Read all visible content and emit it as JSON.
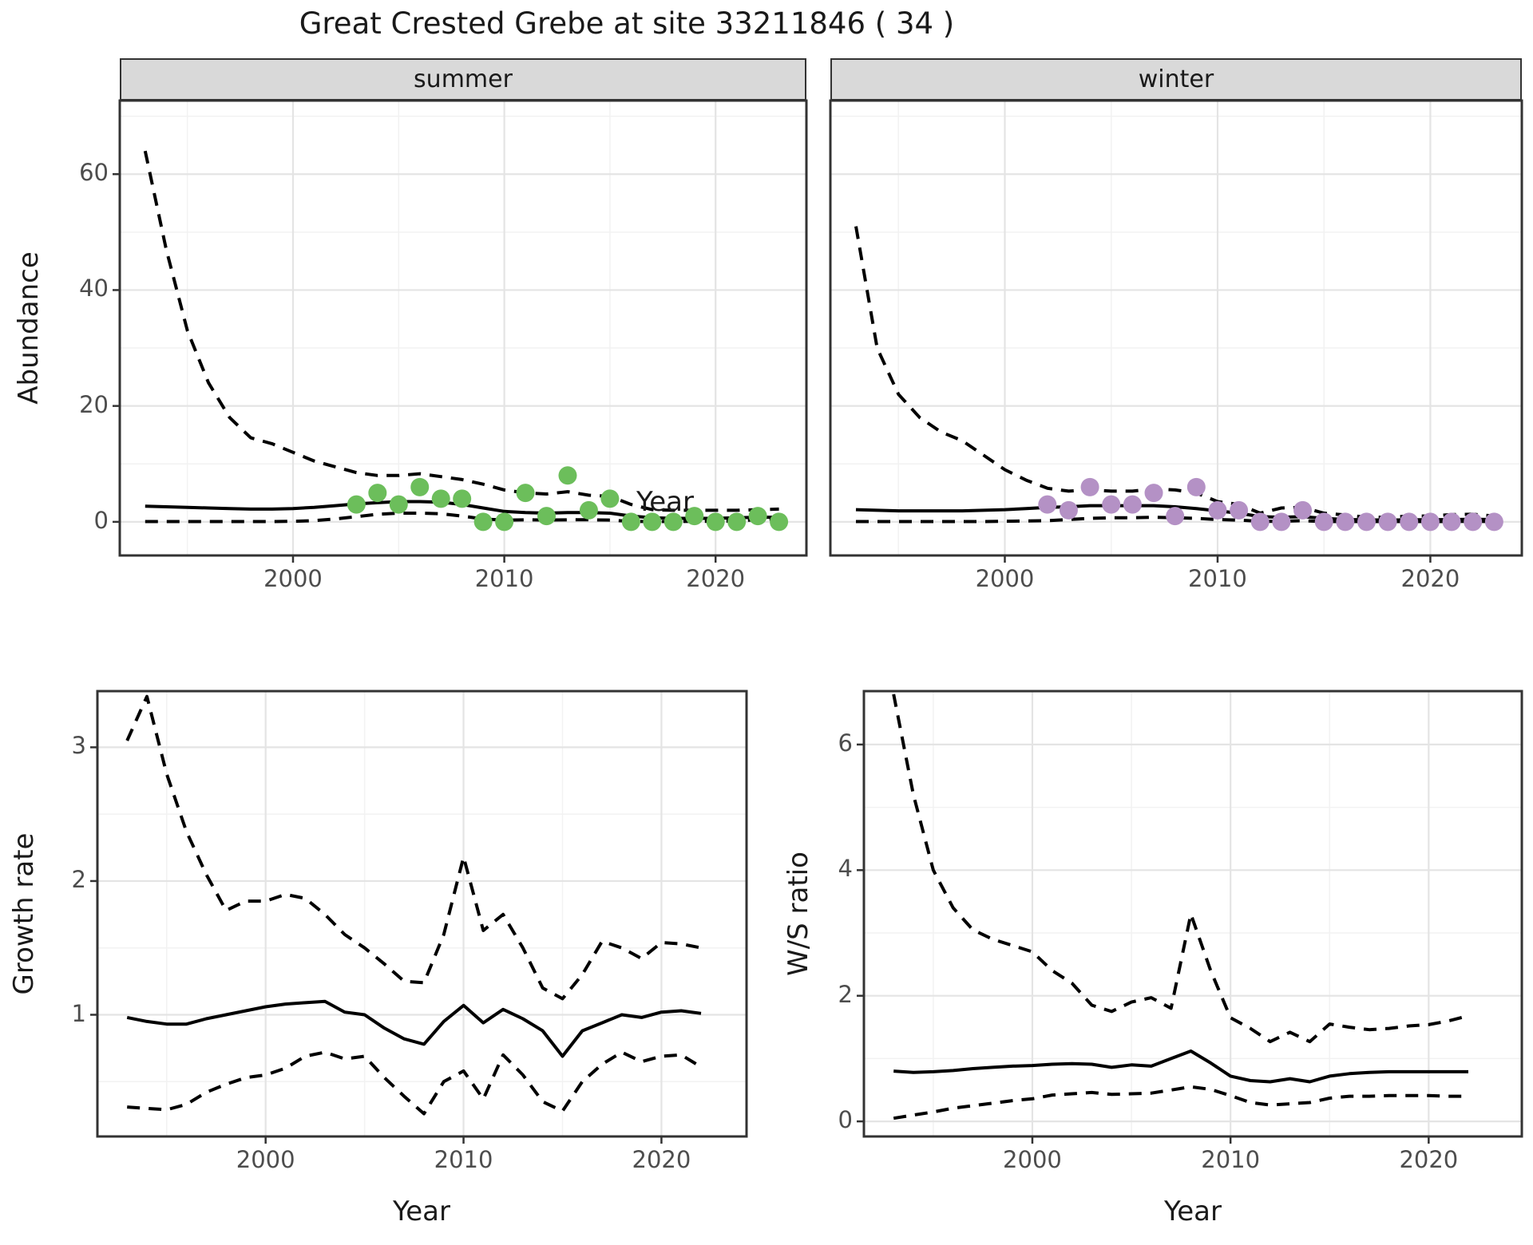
{
  "title": "Great Crested Grebe at site 33211846 ( 34 )",
  "colors": {
    "summer_point": "#6CBE5B",
    "winter_point": "#B491C5",
    "line": "#000000",
    "strip_bg": "#D9D9D9",
    "grid_major": "#E4E4E4",
    "grid_minor": "#F2F2F2",
    "panel_border": "#333333",
    "tick_text": "#4D4D4D",
    "text": "#1A1A1A"
  },
  "chart_data": [
    {
      "id": "abundance-summer",
      "type": "line",
      "facet_label": "summer",
      "xlabel": "Year",
      "ylabel": "Abundance",
      "xlim": [
        1991.8,
        2024.3
      ],
      "ylim": [
        -5.8,
        72.7
      ],
      "x_major_ticks": [
        2000,
        2010,
        2020
      ],
      "x_minor_ticks": [
        1995,
        2005,
        2015
      ],
      "y_major_ticks": [
        0,
        20,
        40,
        60
      ],
      "y_minor_ticks": [
        10,
        30,
        50,
        70
      ],
      "grid": true,
      "legend": "none",
      "series": [
        {
          "name": "upper-ci",
          "style": "dashed",
          "x": [
            1993,
            1994,
            1995,
            1996,
            1997,
            1998,
            1999,
            2000,
            2001,
            2002,
            2003,
            2004,
            2005,
            2006,
            2007,
            2008,
            2009,
            2010,
            2011,
            2012,
            2013,
            2014,
            2015,
            2016,
            2017,
            2018,
            2019,
            2020,
            2021,
            2022,
            2023
          ],
          "y": [
            64,
            47,
            33,
            24,
            18,
            14.5,
            13.5,
            12,
            10.5,
            9.5,
            8.5,
            8,
            8,
            8.3,
            7.8,
            7.3,
            6.5,
            5.5,
            5,
            4.8,
            5.2,
            4.6,
            4.4,
            3,
            2.1,
            2,
            2,
            2,
            2,
            2.1,
            2.2
          ]
        },
        {
          "name": "fit",
          "style": "solid",
          "x": [
            1993,
            1994,
            1995,
            1996,
            1997,
            1998,
            1999,
            2000,
            2001,
            2002,
            2003,
            2004,
            2005,
            2006,
            2007,
            2008,
            2009,
            2010,
            2011,
            2012,
            2013,
            2014,
            2015,
            2016,
            2017,
            2018,
            2019,
            2020,
            2021,
            2022,
            2023
          ],
          "y": [
            2.7,
            2.6,
            2.5,
            2.4,
            2.3,
            2.2,
            2.2,
            2.3,
            2.5,
            2.8,
            3.1,
            3.3,
            3.5,
            3.5,
            3.4,
            3,
            2.4,
            1.8,
            1.6,
            1.5,
            1.6,
            1.6,
            1.5,
            1,
            0.7,
            0.6,
            0.6,
            0.6,
            0.7,
            0.8,
            0.8
          ]
        },
        {
          "name": "lower-ci",
          "style": "dashed",
          "x": [
            1993,
            1994,
            1995,
            1996,
            1997,
            1998,
            1999,
            2000,
            2001,
            2002,
            2003,
            2004,
            2005,
            2006,
            2007,
            2008,
            2009,
            2010,
            2011,
            2012,
            2013,
            2014,
            2015,
            2016,
            2017,
            2018,
            2019,
            2020,
            2021,
            2022,
            2023
          ],
          "y": [
            0.05,
            0.05,
            0.05,
            0.05,
            0.05,
            0.05,
            0.05,
            0.1,
            0.2,
            0.5,
            0.9,
            1.3,
            1.5,
            1.5,
            1.4,
            1,
            0.5,
            0.3,
            0.35,
            0.3,
            0.35,
            0.35,
            0.3,
            0.1,
            0.05,
            0.05,
            0.1,
            0.1,
            0.15,
            0.4,
            0.5
          ]
        },
        {
          "name": "observed-counts",
          "style": "points",
          "color_key": "summer_point",
          "x": [
            2003,
            2004,
            2005,
            2006,
            2007,
            2008,
            2009,
            2010,
            2011,
            2012,
            2013,
            2014,
            2015,
            2016,
            2017,
            2018,
            2019,
            2020,
            2021,
            2022,
            2023
          ],
          "y": [
            3,
            5,
            3,
            6,
            4,
            4,
            0,
            0,
            5,
            1,
            8,
            2,
            4,
            0,
            0,
            0,
            1,
            0,
            0,
            1,
            0
          ]
        }
      ]
    },
    {
      "id": "abundance-winter",
      "type": "line",
      "facet_label": "winter",
      "xlabel": "Year",
      "ylabel": "Abundance",
      "xlim": [
        1991.8,
        2024.3
      ],
      "ylim": [
        -5.8,
        72.7
      ],
      "x_major_ticks": [
        2000,
        2010,
        2020
      ],
      "x_minor_ticks": [
        1995,
        2005,
        2015
      ],
      "y_major_ticks": [
        0,
        20,
        40,
        60
      ],
      "y_minor_ticks": [
        10,
        30,
        50,
        70
      ],
      "grid": true,
      "legend": "none",
      "series": [
        {
          "name": "upper-ci",
          "style": "dashed",
          "x": [
            1993,
            1994,
            1995,
            1996,
            1997,
            1998,
            1999,
            2000,
            2001,
            2002,
            2003,
            2004,
            2005,
            2006,
            2007,
            2008,
            2009,
            2010,
            2011,
            2012,
            2013,
            2014,
            2015,
            2016,
            2017,
            2018,
            2019,
            2020,
            2021,
            2022,
            2023
          ],
          "y": [
            51,
            30,
            22,
            18,
            15.5,
            14,
            11.5,
            9,
            7.2,
            5.8,
            5.3,
            5.5,
            5.3,
            5.3,
            5.7,
            5.5,
            5,
            3.5,
            3,
            1.5,
            2.4,
            2.5,
            1.5,
            1.2,
            0.8,
            0.8,
            1,
            1,
            1.25,
            1.3,
            1
          ]
        },
        {
          "name": "fit",
          "style": "solid",
          "x": [
            1993,
            1994,
            1995,
            1996,
            1997,
            1998,
            1999,
            2000,
            2001,
            2002,
            2003,
            2004,
            2005,
            2006,
            2007,
            2008,
            2009,
            2010,
            2011,
            2012,
            2013,
            2014,
            2015,
            2016,
            2017,
            2018,
            2019,
            2020,
            2021,
            2022,
            2023
          ],
          "y": [
            2.1,
            2,
            1.9,
            1.9,
            1.9,
            1.9,
            2,
            2.1,
            2.3,
            2.5,
            2.6,
            2.8,
            2.8,
            2.8,
            2.8,
            2.6,
            2.3,
            1.9,
            1.5,
            0.9,
            0.8,
            0.9,
            0.6,
            0.4,
            0.35,
            0.3,
            0.35,
            0.35,
            0.4,
            0.45,
            0.4
          ]
        },
        {
          "name": "lower-ci",
          "style": "dashed",
          "x": [
            1993,
            1994,
            1995,
            1996,
            1997,
            1998,
            1999,
            2000,
            2001,
            2002,
            2003,
            2004,
            2005,
            2006,
            2007,
            2008,
            2009,
            2010,
            2011,
            2012,
            2013,
            2014,
            2015,
            2016,
            2017,
            2018,
            2019,
            2020,
            2021,
            2022,
            2023
          ],
          "y": [
            0.05,
            0.05,
            0.05,
            0.05,
            0.05,
            0.05,
            0.05,
            0.1,
            0.15,
            0.2,
            0.4,
            0.6,
            0.7,
            0.7,
            0.8,
            0.7,
            0.6,
            0.4,
            0.3,
            0.1,
            0.1,
            0.2,
            0.05,
            0.05,
            0.05,
            0.05,
            0.05,
            0.05,
            0.05,
            0.1,
            0.05
          ]
        },
        {
          "name": "observed-counts",
          "style": "points",
          "color_key": "winter_point",
          "x": [
            2002,
            2003,
            2004,
            2005,
            2006,
            2007,
            2008,
            2009,
            2010,
            2011,
            2012,
            2013,
            2014,
            2015,
            2016,
            2017,
            2018,
            2019,
            2020,
            2021,
            2022,
            2023
          ],
          "y": [
            3,
            2,
            6,
            3,
            3,
            5,
            1,
            6,
            2,
            2,
            0,
            0,
            2,
            0,
            0,
            0,
            0,
            0,
            0,
            0,
            0,
            0
          ]
        }
      ]
    },
    {
      "id": "growth-rate",
      "type": "line",
      "facet_label": null,
      "xlabel": "Year",
      "ylabel": "Growth rate",
      "xlim": [
        1991.5,
        2024.3
      ],
      "ylim": [
        0.09,
        3.42
      ],
      "x_major_ticks": [
        2000,
        2010,
        2020
      ],
      "x_minor_ticks": [
        1995,
        2005,
        2015
      ],
      "y_major_ticks": [
        1,
        2,
        3
      ],
      "y_minor_ticks": [
        0.5,
        1.5,
        2.5
      ],
      "grid": true,
      "legend": "none",
      "series": [
        {
          "name": "upper-ci",
          "style": "dashed",
          "x": [
            1993,
            1994,
            1995,
            1996,
            1997,
            1998,
            1999,
            2000,
            2001,
            2002,
            2003,
            2004,
            2005,
            2006,
            2007,
            2008,
            2009,
            2010,
            2011,
            2012,
            2013,
            2014,
            2015,
            2016,
            2017,
            2018,
            2019,
            2020,
            2021,
            2022
          ],
          "y": [
            3.05,
            3.38,
            2.8,
            2.37,
            2.05,
            1.78,
            1.85,
            1.85,
            1.9,
            1.87,
            1.75,
            1.6,
            1.5,
            1.38,
            1.25,
            1.24,
            1.6,
            2.18,
            1.63,
            1.75,
            1.5,
            1.2,
            1.12,
            1.3,
            1.55,
            1.5,
            1.42,
            1.54,
            1.53,
            1.5
          ]
        },
        {
          "name": "fit",
          "style": "solid",
          "x": [
            1993,
            1994,
            1995,
            1996,
            1997,
            1998,
            1999,
            2000,
            2001,
            2002,
            2003,
            2004,
            2005,
            2006,
            2007,
            2008,
            2009,
            2010,
            2011,
            2012,
            2013,
            2014,
            2015,
            2016,
            2017,
            2018,
            2019,
            2020,
            2021,
            2022
          ],
          "y": [
            0.98,
            0.95,
            0.93,
            0.93,
            0.97,
            1,
            1.03,
            1.06,
            1.08,
            1.09,
            1.1,
            1.02,
            1,
            0.9,
            0.82,
            0.78,
            0.95,
            1.07,
            0.94,
            1.04,
            0.97,
            0.88,
            0.69,
            0.88,
            0.94,
            1,
            0.98,
            1.02,
            1.03,
            1.01
          ]
        },
        {
          "name": "lower-ci",
          "style": "dashed",
          "x": [
            1993,
            1994,
            1995,
            1996,
            1997,
            1998,
            1999,
            2000,
            2001,
            2002,
            2003,
            2004,
            2005,
            2006,
            2007,
            2008,
            2009,
            2010,
            2011,
            2012,
            2013,
            2014,
            2015,
            2016,
            2017,
            2018,
            2019,
            2020,
            2021,
            2022
          ],
          "y": [
            0.31,
            0.3,
            0.29,
            0.33,
            0.42,
            0.48,
            0.53,
            0.55,
            0.6,
            0.69,
            0.72,
            0.67,
            0.69,
            0.53,
            0.39,
            0.26,
            0.5,
            0.58,
            0.37,
            0.7,
            0.55,
            0.35,
            0.28,
            0.5,
            0.63,
            0.72,
            0.65,
            0.69,
            0.7,
            0.61
          ]
        }
      ]
    },
    {
      "id": "ws-ratio",
      "type": "line",
      "facet_label": null,
      "xlabel": "Year",
      "ylabel": "W/S ratio",
      "xlim": [
        1991.5,
        2024.7
      ],
      "ylim": [
        -0.24,
        6.85
      ],
      "x_major_ticks": [
        2000,
        2010,
        2020
      ],
      "x_minor_ticks": [
        1995,
        2005,
        2015
      ],
      "y_major_ticks": [
        0,
        2,
        4,
        6
      ],
      "y_minor_ticks": [
        1,
        3,
        5
      ],
      "grid": true,
      "legend": "none",
      "series": [
        {
          "name": "upper-ci",
          "style": "dashed",
          "x": [
            1993,
            1994,
            1995,
            1996,
            1997,
            1998,
            1999,
            2000,
            2001,
            2002,
            2003,
            2004,
            2005,
            2006,
            2007,
            2008,
            2009,
            2010,
            2011,
            2012,
            2013,
            2014,
            2015,
            2016,
            2017,
            2018,
            2019,
            2020,
            2021,
            2022
          ],
          "y": [
            6.8,
            5.2,
            4,
            3.4,
            3.05,
            2.9,
            2.8,
            2.7,
            2.4,
            2.2,
            1.85,
            1.75,
            1.9,
            1.97,
            1.8,
            3.3,
            2.4,
            1.65,
            1.48,
            1.27,
            1.42,
            1.27,
            1.55,
            1.5,
            1.46,
            1.48,
            1.52,
            1.54,
            1.6,
            1.68
          ]
        },
        {
          "name": "fit",
          "style": "solid",
          "x": [
            1993,
            1994,
            1995,
            1996,
            1997,
            1998,
            1999,
            2000,
            2001,
            2002,
            2003,
            2004,
            2005,
            2006,
            2007,
            2008,
            2009,
            2010,
            2011,
            2012,
            2013,
            2014,
            2015,
            2016,
            2017,
            2018,
            2019,
            2020,
            2021,
            2022
          ],
          "y": [
            0.8,
            0.78,
            0.79,
            0.81,
            0.84,
            0.86,
            0.88,
            0.89,
            0.91,
            0.92,
            0.91,
            0.86,
            0.9,
            0.88,
            1,
            1.12,
            0.93,
            0.72,
            0.65,
            0.63,
            0.68,
            0.63,
            0.72,
            0.76,
            0.78,
            0.79,
            0.79,
            0.79,
            0.79,
            0.79
          ]
        },
        {
          "name": "lower-ci",
          "style": "dashed",
          "x": [
            1993,
            1994,
            1995,
            1996,
            1997,
            1998,
            1999,
            2000,
            2001,
            2002,
            2003,
            2004,
            2005,
            2006,
            2007,
            2008,
            2009,
            2010,
            2011,
            2012,
            2013,
            2014,
            2015,
            2016,
            2017,
            2018,
            2019,
            2020,
            2021,
            2022
          ],
          "y": [
            0.05,
            0.1,
            0.15,
            0.21,
            0.25,
            0.29,
            0.33,
            0.36,
            0.42,
            0.44,
            0.46,
            0.43,
            0.44,
            0.45,
            0.5,
            0.55,
            0.51,
            0.41,
            0.3,
            0.26,
            0.28,
            0.3,
            0.37,
            0.4,
            0.4,
            0.41,
            0.41,
            0.41,
            0.4,
            0.4
          ]
        }
      ]
    }
  ]
}
